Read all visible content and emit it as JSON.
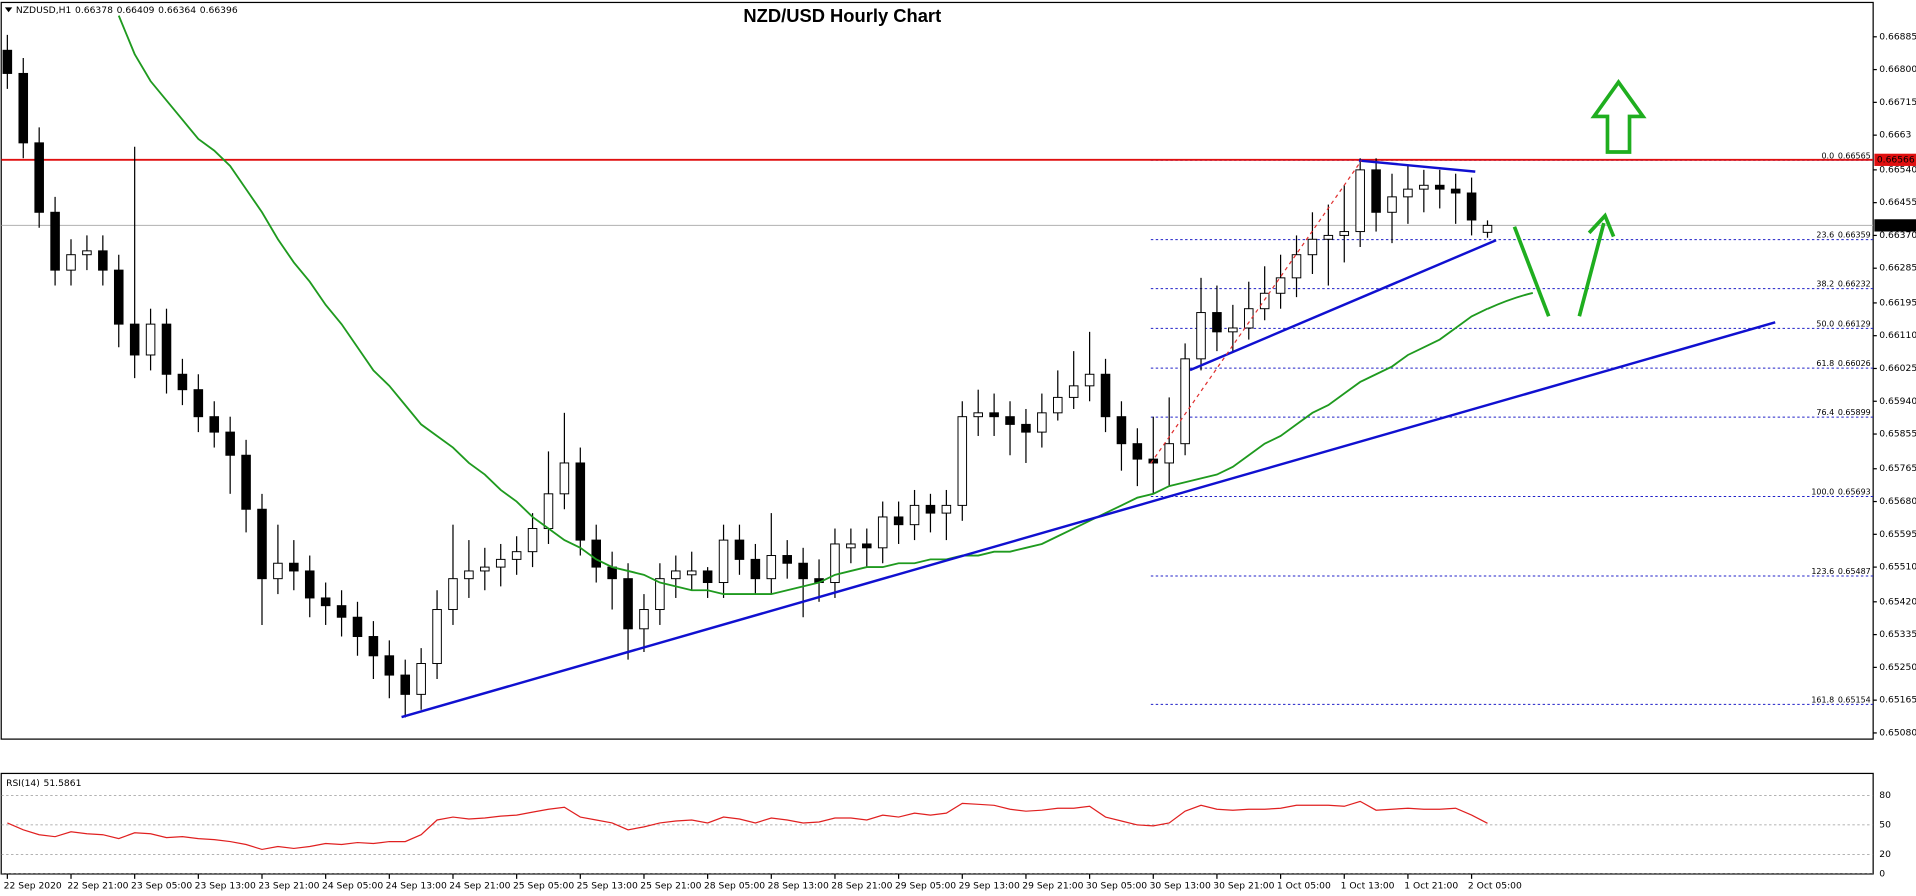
{
  "chart_data": [
    {
      "type": "candlestick",
      "title": "NZD/USD Hourly Chart",
      "symbol": "NZDUSD,H1",
      "categories": [
        "22 Sep 2020",
        null,
        null,
        null,
        "22 Sep 21:00",
        null,
        null,
        null,
        "23 Sep 05:00",
        null,
        null,
        null,
        "23 Sep 13:00",
        null,
        null,
        null,
        "23 Sep 21:00",
        null,
        null,
        null,
        "24 Sep 05:00",
        null,
        null,
        null,
        "24 Sep 13:00",
        null,
        null,
        null,
        "24 Sep 21:00",
        null,
        null,
        null,
        "25 Sep 05:00",
        null,
        null,
        null,
        "25 Sep 13:00",
        null,
        null,
        null,
        "25 Sep 21:00",
        null,
        null,
        null,
        "28 Sep 05:00",
        null,
        null,
        null,
        "28 Sep 13:00",
        null,
        null,
        null,
        "28 Sep 21:00",
        null,
        null,
        null,
        "29 Sep 05:00",
        null,
        null,
        null,
        "29 Sep 13:00",
        null,
        null,
        null,
        "29 Sep 21:00",
        null,
        null,
        null,
        "30 Sep 05:00",
        null,
        null,
        null,
        "30 Sep 13:00",
        null,
        null,
        null,
        "30 Sep 21:00",
        null,
        null,
        null,
        "1 Oct 05:00",
        null,
        null,
        null,
        "1 Oct 13:00",
        null,
        null,
        null,
        "1 Oct 21:00",
        null,
        null,
        null,
        "2 Oct 05:00",
        null
      ],
      "open": [
        0.6685,
        0.6679,
        0.6661,
        0.6643,
        0.6628,
        0.6632,
        0.6633,
        0.6628,
        0.6614,
        0.6606,
        0.6614,
        0.6601,
        0.6597,
        0.659,
        0.6586,
        0.658,
        0.6566,
        0.6548,
        0.6552,
        0.655,
        0.6543,
        0.6541,
        0.6538,
        0.6533,
        0.6528,
        0.6523,
        0.6518,
        0.6526,
        0.654,
        0.6548,
        0.655,
        0.6551,
        0.6553,
        0.6555,
        0.6561,
        0.657,
        0.6578,
        0.6558,
        0.6551,
        0.6548,
        0.6535,
        0.654,
        0.6548,
        0.6549,
        0.655,
        0.6547,
        0.6558,
        0.6553,
        0.6548,
        0.6554,
        0.6552,
        0.6548,
        0.6547,
        0.6556,
        0.6557,
        0.6556,
        0.6564,
        0.6562,
        0.6567,
        0.6565,
        0.6567,
        0.659,
        0.6591,
        0.659,
        0.6588,
        0.6586,
        0.6591,
        0.6595,
        0.6598,
        0.6601,
        0.659,
        0.6583,
        0.6579,
        0.6578,
        0.6583,
        0.6605,
        0.6617,
        0.6612,
        0.6613,
        0.6618,
        0.6622,
        0.6626,
        0.6632,
        0.6636,
        0.6637,
        0.6638,
        0.6654,
        0.6643,
        0.6647,
        0.6649,
        0.665,
        0.6649,
        0.6648,
        0.66378
      ],
      "high": [
        0.6689,
        0.6683,
        0.6665,
        0.6647,
        0.6636,
        0.6637,
        0.6637,
        0.6632,
        0.666,
        0.6618,
        0.6618,
        0.6605,
        0.6601,
        0.6594,
        0.659,
        0.6584,
        0.657,
        0.6562,
        0.6558,
        0.6554,
        0.6547,
        0.6545,
        0.6542,
        0.6537,
        0.6532,
        0.6527,
        0.653,
        0.6545,
        0.6562,
        0.6558,
        0.6556,
        0.6557,
        0.6559,
        0.6565,
        0.6581,
        0.6591,
        0.6582,
        0.6562,
        0.6555,
        0.6552,
        0.6544,
        0.6552,
        0.6554,
        0.6555,
        0.6551,
        0.6562,
        0.6562,
        0.6557,
        0.6565,
        0.6558,
        0.6556,
        0.6553,
        0.6561,
        0.6561,
        0.6561,
        0.6568,
        0.6568,
        0.6571,
        0.657,
        0.6571,
        0.6594,
        0.6597,
        0.6596,
        0.6594,
        0.6592,
        0.6596,
        0.6602,
        0.6607,
        0.6612,
        0.6605,
        0.6594,
        0.6587,
        0.659,
        0.6595,
        0.6609,
        0.6626,
        0.6624,
        0.6619,
        0.6625,
        0.6629,
        0.6632,
        0.6637,
        0.6643,
        0.6645,
        0.665,
        0.6657,
        0.6657,
        0.6653,
        0.6655,
        0.6654,
        0.6654,
        0.6653,
        0.6652,
        0.66409
      ],
      "low": [
        0.6675,
        0.6657,
        0.6639,
        0.6624,
        0.6624,
        0.6628,
        0.6624,
        0.6608,
        0.66,
        0.6602,
        0.6596,
        0.6593,
        0.6586,
        0.6582,
        0.657,
        0.656,
        0.6536,
        0.6544,
        0.6545,
        0.6538,
        0.6536,
        0.6533,
        0.6528,
        0.6522,
        0.6517,
        0.6512,
        0.6514,
        0.6522,
        0.6536,
        0.6543,
        0.6545,
        0.6546,
        0.6549,
        0.6551,
        0.6557,
        0.6566,
        0.6554,
        0.6547,
        0.654,
        0.6527,
        0.6529,
        0.6536,
        0.6543,
        0.6545,
        0.6543,
        0.6543,
        0.6549,
        0.6544,
        0.6544,
        0.6548,
        0.6538,
        0.6542,
        0.6543,
        0.6552,
        0.6551,
        0.6552,
        0.6557,
        0.6558,
        0.656,
        0.6558,
        0.6563,
        0.6585,
        0.6585,
        0.658,
        0.6578,
        0.6582,
        0.6589,
        0.6592,
        0.6594,
        0.6586,
        0.6576,
        0.6572,
        0.657,
        0.6572,
        0.658,
        0.6602,
        0.6607,
        0.6607,
        0.661,
        0.6615,
        0.6618,
        0.6621,
        0.6627,
        0.6624,
        0.663,
        0.6634,
        0.6638,
        0.6635,
        0.664,
        0.6643,
        0.6644,
        0.664,
        0.6637,
        0.66364
      ],
      "close": [
        0.6679,
        0.6661,
        0.6643,
        0.6628,
        0.6632,
        0.6633,
        0.6628,
        0.6614,
        0.6606,
        0.6614,
        0.6601,
        0.6597,
        0.659,
        0.6586,
        0.658,
        0.6566,
        0.6548,
        0.6552,
        0.655,
        0.6543,
        0.6541,
        0.6538,
        0.6533,
        0.6528,
        0.6523,
        0.6518,
        0.6526,
        0.654,
        0.6548,
        0.655,
        0.6551,
        0.6553,
        0.6555,
        0.6561,
        0.657,
        0.6578,
        0.6558,
        0.6551,
        0.6548,
        0.6535,
        0.654,
        0.6548,
        0.655,
        0.655,
        0.6547,
        0.6558,
        0.6553,
        0.6548,
        0.6554,
        0.6552,
        0.6548,
        0.6547,
        0.6557,
        0.6557,
        0.6556,
        0.6564,
        0.6562,
        0.6567,
        0.6565,
        0.6567,
        0.659,
        0.6591,
        0.659,
        0.6588,
        0.6586,
        0.6591,
        0.6595,
        0.6598,
        0.6601,
        0.659,
        0.6583,
        0.6579,
        0.6578,
        0.6583,
        0.6605,
        0.6617,
        0.6612,
        0.6613,
        0.6618,
        0.6622,
        0.6626,
        0.6632,
        0.6636,
        0.6637,
        0.6638,
        0.6654,
        0.6643,
        0.6647,
        0.6649,
        0.665,
        0.6649,
        0.6648,
        0.6641,
        0.66396
      ],
      "up_color": "#ffffff",
      "down_color": "#000000",
      "ma": {
        "color": "#1f9a1f",
        "values": [
          null,
          null,
          null,
          null,
          null,
          null,
          null,
          0.6694,
          0.6684,
          0.6677,
          0.6672,
          0.6667,
          0.6662,
          0.6659,
          0.6655,
          0.6649,
          0.6643,
          0.6636,
          0.663,
          0.6625,
          0.6619,
          0.6614,
          0.6608,
          0.6602,
          0.6598,
          0.6593,
          0.6588,
          0.6585,
          0.6582,
          0.6578,
          0.6575,
          0.6571,
          0.6568,
          0.6564,
          0.6561,
          0.6558,
          0.6556,
          0.6553,
          0.6551,
          0.655,
          0.6549,
          0.6547,
          0.6546,
          0.6545,
          0.6545,
          0.6544,
          0.6544,
          0.6544,
          0.6544,
          0.6545,
          0.6546,
          0.6547,
          0.6549,
          0.655,
          0.6551,
          0.6551,
          0.6552,
          0.6552,
          0.6553,
          0.6553,
          0.6554,
          0.6554,
          0.6555,
          0.6555,
          0.6556,
          0.6557,
          0.6559,
          0.6561,
          0.6563,
          0.6565,
          0.6567,
          0.6569,
          0.657,
          0.6572,
          0.6573,
          0.6574,
          0.6575,
          0.6577,
          0.658,
          0.6583,
          0.6585,
          0.6588,
          0.6591,
          0.6593,
          0.6596,
          0.6599,
          0.6601,
          0.6603,
          0.6606,
          0.6608,
          0.661,
          0.6613,
          0.6616,
          0.6618
        ]
      },
      "resistance": {
        "value": 0.66566,
        "color": "#e01010"
      },
      "fib": [
        {
          "ratio": "0.0",
          "price": 0.66565
        },
        {
          "ratio": "23.6",
          "price": 0.66359
        },
        {
          "ratio": "38.2",
          "price": 0.66232
        },
        {
          "ratio": "50.0",
          "price": 0.66129
        },
        {
          "ratio": "61.8",
          "price": 0.66026
        },
        {
          "ratio": "76.4",
          "price": 0.65899
        },
        {
          "ratio": "100.0",
          "price": 0.65693
        },
        {
          "ratio": "123.6",
          "price": 0.65487
        },
        {
          "ratio": "161.8",
          "price": 0.65154
        }
      ],
      "fib_color": "#2020c8",
      "ylim": [
        0.65064,
        0.66955
      ],
      "yticks": [
        0.66885,
        {
          "value": 0.668,
          "label": "0.66800"
        },
        0.66715,
        0.6663,
        {
          "value": 0.6654,
          "label": "0.66540"
        },
        0.66455,
        {
          "value": 0.6637,
          "label": "0.66370"
        },
        0.66285,
        0.66195,
        {
          "value": 0.6611,
          "label": "0.66110"
        },
        0.66025,
        {
          "value": 0.6594,
          "label": "0.65940"
        },
        0.65855,
        0.65765,
        {
          "value": 0.6568,
          "label": "0.65680"
        },
        0.65595,
        {
          "value": 0.6551,
          "label": "0.65510"
        },
        {
          "value": 0.6542,
          "label": "0.65420"
        },
        0.65335,
        {
          "value": 0.6525,
          "label": "0.65250"
        },
        0.65165,
        {
          "value": 0.6508,
          "label": "0.65080"
        }
      ]
    },
    {
      "type": "line",
      "title": "RSI(14)",
      "color": "#e02020",
      "values": [
        52,
        45,
        40,
        38,
        43,
        41,
        40,
        36,
        42,
        41,
        37,
        38,
        36,
        35,
        33,
        30,
        25,
        28,
        26,
        28,
        31,
        30,
        32,
        31,
        33,
        33,
        40,
        55,
        58,
        56,
        57,
        59,
        60,
        63,
        66,
        68,
        58,
        55,
        52,
        45,
        48,
        52,
        54,
        55,
        52,
        58,
        56,
        52,
        57,
        55,
        52,
        53,
        57,
        57,
        55,
        60,
        58,
        62,
        60,
        62,
        72,
        71,
        70,
        66,
        64,
        65,
        67,
        67,
        69,
        58,
        54,
        50,
        49,
        52,
        64,
        70,
        66,
        65,
        66,
        66,
        67,
        70,
        70,
        70,
        69,
        74,
        65,
        66,
        67,
        66,
        66,
        67,
        60,
        51.5861
      ],
      "ylim": [
        0,
        100
      ],
      "yticks": [
        80,
        50,
        20,
        0
      ]
    }
  ]
}
